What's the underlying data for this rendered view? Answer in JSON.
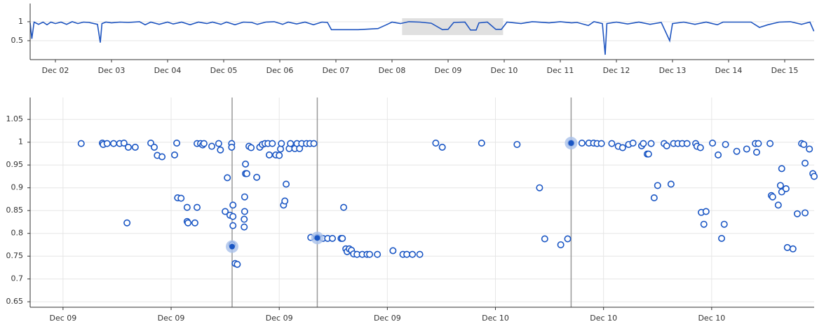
{
  "chart_data": [
    {
      "type": "line",
      "color": "#1f55c0",
      "grid_x": false,
      "xlim": [
        1.55,
        15.525
      ],
      "ylim": [
        0,
        1.48
      ],
      "yticks": [
        0.5,
        1
      ],
      "xticks": [
        {
          "value": 2,
          "label": "Dec 02"
        },
        {
          "value": 3,
          "label": "Dec 03"
        },
        {
          "value": 4,
          "label": "Dec 04"
        },
        {
          "value": 5,
          "label": "Dec 05"
        },
        {
          "value": 6,
          "label": "Dec 06"
        },
        {
          "value": 7,
          "label": "Dec 07"
        },
        {
          "value": 8,
          "label": "Dec 08"
        },
        {
          "value": 9,
          "label": "Dec 09"
        },
        {
          "value": 10,
          "label": "Dec 10"
        },
        {
          "value": 11,
          "label": "Dec 11"
        },
        {
          "value": 12,
          "label": "Dec 12"
        },
        {
          "value": 13,
          "label": "Dec 13"
        },
        {
          "value": 14,
          "label": "Dec 14"
        },
        {
          "value": 15,
          "label": "Dec 15"
        }
      ],
      "selection": [
        8.18,
        9.98
      ],
      "x": [
        1.55,
        1.58,
        1.62,
        1.7,
        1.78,
        1.85,
        1.92,
        2.0,
        2.1,
        2.2,
        2.3,
        2.4,
        2.5,
        2.6,
        2.75,
        2.8,
        2.83,
        2.9,
        3.0,
        3.15,
        3.3,
        3.5,
        3.6,
        3.7,
        3.85,
        4.0,
        4.1,
        4.25,
        4.4,
        4.55,
        4.7,
        4.8,
        4.95,
        5.05,
        5.2,
        5.35,
        5.5,
        5.6,
        5.75,
        5.9,
        6.05,
        6.15,
        6.3,
        6.45,
        6.6,
        6.75,
        6.85,
        6.92,
        7.4,
        7.75,
        7.9,
        8.0,
        8.15,
        8.3,
        8.5,
        8.7,
        8.9,
        9.0,
        9.1,
        9.3,
        9.4,
        9.5,
        9.55,
        9.7,
        9.85,
        9.95,
        10.05,
        10.3,
        10.5,
        10.8,
        11.0,
        11.2,
        11.3,
        11.5,
        11.6,
        11.75,
        11.8,
        11.83,
        12.0,
        12.2,
        12.4,
        12.6,
        12.8,
        12.95,
        13.0,
        13.2,
        13.4,
        13.6,
        13.8,
        13.9,
        14.1,
        14.3,
        14.4,
        14.55,
        14.7,
        14.9,
        15.1,
        15.3,
        15.45,
        15.52
      ],
      "values": [
        0.97,
        0.55,
        0.99,
        0.93,
        0.99,
        0.92,
        0.99,
        0.95,
        0.99,
        0.93,
        1.0,
        0.95,
        0.99,
        0.98,
        0.93,
        0.45,
        0.95,
        0.99,
        0.97,
        0.99,
        0.98,
        1.0,
        0.92,
        0.99,
        0.93,
        0.99,
        0.94,
        0.99,
        0.92,
        0.99,
        0.95,
        0.99,
        0.93,
        0.99,
        0.92,
        0.99,
        0.98,
        0.93,
        0.99,
        1.0,
        0.93,
        0.99,
        0.94,
        0.99,
        0.92,
        0.99,
        0.98,
        0.79,
        0.79,
        0.82,
        0.92,
        0.99,
        0.95,
        1.0,
        0.99,
        0.96,
        0.79,
        0.8,
        0.98,
        0.99,
        0.78,
        0.78,
        0.97,
        0.99,
        0.8,
        0.8,
        0.99,
        0.95,
        1.0,
        0.97,
        1.0,
        0.97,
        0.98,
        0.9,
        1.0,
        0.95,
        0.13,
        0.95,
        0.99,
        0.94,
        0.99,
        0.93,
        0.98,
        0.5,
        0.95,
        0.99,
        0.93,
        0.99,
        0.92,
        0.99,
        0.99,
        0.99,
        0.99,
        0.85,
        0.92,
        0.99,
        1.0,
        0.93,
        0.99,
        0.75
      ]
    },
    {
      "type": "scatter",
      "color": "#1a56c4",
      "grid_x": true,
      "xlim": [
        8.924,
        10.737
      ],
      "ylim": [
        0.638,
        1.098
      ],
      "yticks": [
        0.65,
        0.7,
        0.75,
        0.8,
        0.85,
        0.9,
        0.95,
        1,
        1.05
      ],
      "xticks": [
        {
          "value": 9,
          "label": "Dec 09"
        },
        {
          "value": 9.25,
          "label": "Dec 09"
        },
        {
          "value": 9.5,
          "label": "Dec 09"
        },
        {
          "value": 9.75,
          "label": "Dec 09"
        },
        {
          "value": 10,
          "label": "Dec 10"
        },
        {
          "value": 10.25,
          "label": "Dec 10"
        },
        {
          "value": 10.5,
          "label": "Dec 10"
        }
      ],
      "highlights": {
        "x": [
          9.391,
          9.588,
          10.175
        ],
        "values": [
          0.771,
          0.79,
          0.998
        ]
      },
      "x": [
        9.042,
        9.091,
        9.093,
        9.102,
        9.117,
        9.131,
        9.141,
        9.148,
        9.151,
        9.167,
        9.203,
        9.211,
        9.218,
        9.229,
        9.258,
        9.263,
        9.265,
        9.273,
        9.287,
        9.287,
        9.289,
        9.305,
        9.31,
        9.31,
        9.318,
        9.323,
        9.326,
        9.344,
        9.36,
        9.364,
        9.375,
        9.38,
        9.386,
        9.39,
        9.39,
        9.391,
        9.393,
        9.393,
        9.393,
        9.398,
        9.403,
        9.419,
        9.419,
        9.42,
        9.42,
        9.422,
        9.425,
        9.422,
        9.43,
        9.435,
        9.448,
        9.455,
        9.461,
        9.467,
        9.474,
        9.477,
        9.484,
        9.492,
        9.5,
        9.503,
        9.505,
        9.51,
        9.513,
        9.516,
        9.523,
        9.526,
        9.536,
        9.541,
        9.547,
        9.552,
        9.563,
        9.571,
        9.58,
        9.573,
        9.588,
        9.601,
        9.612,
        9.623,
        9.643,
        9.646,
        9.649,
        9.654,
        9.657,
        9.662,
        9.667,
        9.672,
        9.68,
        9.692,
        9.703,
        9.709,
        9.727,
        9.763,
        9.786,
        9.795,
        9.808,
        9.825,
        9.862,
        9.877,
        9.968,
        10.05,
        10.102,
        10.114,
        10.151,
        10.167,
        10.175,
        10.2,
        10.216,
        10.227,
        10.235,
        10.245,
        10.269,
        10.284,
        10.294,
        10.308,
        10.318,
        10.338,
        10.342,
        10.351,
        10.354,
        10.36,
        10.367,
        10.375,
        10.39,
        10.396,
        10.406,
        10.412,
        10.422,
        10.432,
        10.443,
        10.463,
        10.466,
        10.474,
        10.476,
        10.482,
        10.487,
        10.502,
        10.515,
        10.523,
        10.529,
        10.532,
        10.558,
        10.581,
        10.601,
        10.604,
        10.608,
        10.635,
        10.638,
        10.641,
        10.654,
        10.659,
        10.662,
        10.662,
        10.672,
        10.675,
        10.688,
        10.698,
        10.708,
        10.713,
        10.716,
        10.716,
        10.726,
        10.734,
        10.737
      ],
      "values": [
        0.997,
        0.998,
        0.995,
        0.997,
        0.997,
        0.997,
        0.998,
        0.823,
        0.989,
        0.989,
        0.998,
        0.989,
        0.971,
        0.968,
        0.972,
        0.998,
        0.878,
        0.877,
        0.857,
        0.826,
        0.823,
        0.823,
        0.857,
        0.997,
        0.997,
        0.994,
        0.997,
        0.991,
        0.997,
        0.983,
        0.848,
        0.922,
        0.84,
        0.997,
        0.989,
        0.775,
        0.862,
        0.837,
        0.817,
        0.734,
        0.732,
        0.831,
        0.814,
        0.848,
        0.88,
        0.931,
        0.931,
        0.952,
        0.991,
        0.988,
        0.923,
        0.989,
        0.995,
        0.997,
        0.997,
        0.972,
        0.997,
        0.972,
        0.971,
        0.985,
        0.997,
        0.862,
        0.871,
        0.908,
        0.986,
        0.997,
        0.986,
        0.997,
        0.986,
        0.997,
        0.997,
        0.997,
        0.997,
        0.791,
        0.791,
        0.789,
        0.789,
        0.789,
        0.789,
        0.789,
        0.857,
        0.766,
        0.76,
        0.766,
        0.763,
        0.755,
        0.754,
        0.754,
        0.754,
        0.754,
        0.754,
        0.762,
        0.754,
        0.754,
        0.754,
        0.754,
        0.998,
        0.989,
        0.998,
        0.995,
        0.9,
        0.788,
        0.775,
        0.788,
        0.998,
        0.998,
        0.998,
        0.998,
        0.997,
        0.997,
        0.997,
        0.991,
        0.988,
        0.995,
        0.998,
        0.992,
        0.997,
        0.974,
        0.974,
        0.997,
        0.878,
        0.905,
        0.997,
        0.992,
        0.908,
        0.997,
        0.997,
        0.997,
        0.997,
        0.997,
        0.991,
        0.988,
        0.846,
        0.82,
        0.848,
        0.998,
        0.972,
        0.789,
        0.82,
        0.995,
        0.98,
        0.985,
        0.997,
        0.978,
        0.997,
        0.997,
        0.883,
        0.88,
        0.862,
        0.905,
        0.942,
        0.891,
        0.898,
        0.769,
        0.766,
        0.843,
        0.997,
        0.995,
        0.954,
        0.845,
        0.985,
        0.931,
        0.925
      ]
    }
  ]
}
